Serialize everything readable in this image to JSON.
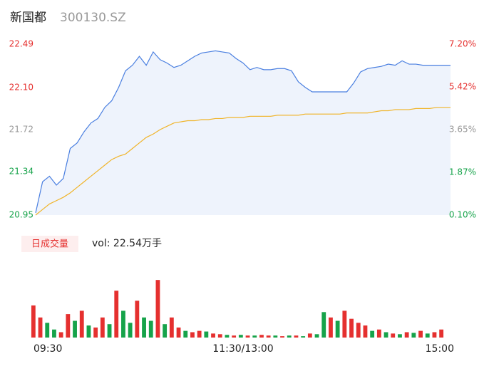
{
  "chart_data": [
    {
      "type": "line",
      "title": "新国都",
      "subtitle": "300130.SZ",
      "xlim": [
        0,
        240
      ],
      "xticks": [
        {
          "value": 0,
          "label": "09:30"
        },
        {
          "value": 120,
          "label": "11:30/13:00"
        },
        {
          "value": 240,
          "label": "15:00"
        }
      ],
      "x": [
        0,
        4,
        8,
        12,
        16,
        20,
        24,
        28,
        32,
        36,
        40,
        44,
        48,
        52,
        56,
        60,
        64,
        68,
        72,
        76,
        80,
        84,
        88,
        92,
        96,
        100,
        104,
        108,
        112,
        116,
        120,
        124,
        128,
        132,
        136,
        140,
        144,
        148,
        152,
        156,
        160,
        164,
        168,
        172,
        176,
        180,
        184,
        188,
        192,
        196,
        200,
        204,
        208,
        212,
        216,
        220,
        224,
        228,
        232,
        236,
        240
      ],
      "ylim": [
        20.95,
        22.49
      ],
      "yticks": [
        20.95,
        21.34,
        21.72,
        {
          "value": 22.1,
          "label": "22.10"
        },
        22.49
      ],
      "y2lim": [
        0.1,
        7.2
      ],
      "y2ticks": [
        {
          "value": 0.1,
          "label": "0.10%"
        },
        {
          "value": 1.87,
          "label": "1.87%"
        },
        {
          "value": 3.65,
          "label": "3.65%"
        },
        {
          "value": 5.42,
          "label": "5.42%"
        },
        {
          "value": 7.2,
          "label": "7.20%"
        }
      ],
      "tick_colors": [
        "#16a34a",
        "#16a34a",
        "#999999",
        "#e5302f",
        "#e5302f"
      ],
      "series": [
        {
          "name": "price",
          "color": "#4a7fe0",
          "fill": "#eef3fc",
          "values": [
            20.97,
            21.25,
            21.3,
            21.22,
            21.28,
            21.55,
            21.6,
            21.7,
            21.78,
            21.82,
            21.92,
            21.98,
            22.1,
            22.25,
            22.3,
            22.38,
            22.3,
            22.42,
            22.35,
            22.32,
            22.28,
            22.3,
            22.34,
            22.38,
            22.41,
            22.42,
            22.43,
            22.42,
            22.41,
            22.36,
            22.32,
            22.26,
            22.28,
            22.26,
            22.26,
            22.27,
            22.27,
            22.25,
            22.15,
            22.1,
            22.06,
            22.06,
            22.06,
            22.06,
            22.06,
            22.06,
            22.14,
            22.24,
            22.27,
            22.28,
            22.29,
            22.31,
            22.3,
            22.34,
            22.31,
            22.31,
            22.3,
            22.3,
            22.3,
            22.3,
            22.3
          ]
        },
        {
          "name": "average",
          "color": "#f0b429",
          "values": [
            20.95,
            21.0,
            21.05,
            21.08,
            21.11,
            21.15,
            21.2,
            21.25,
            21.3,
            21.35,
            21.4,
            21.45,
            21.48,
            21.5,
            21.55,
            21.6,
            21.65,
            21.68,
            21.72,
            21.75,
            21.78,
            21.79,
            21.8,
            21.8,
            21.81,
            21.81,
            21.82,
            21.82,
            21.83,
            21.83,
            21.83,
            21.84,
            21.84,
            21.84,
            21.84,
            21.85,
            21.85,
            21.85,
            21.85,
            21.86,
            21.86,
            21.86,
            21.86,
            21.86,
            21.86,
            21.87,
            21.87,
            21.87,
            21.87,
            21.88,
            21.89,
            21.89,
            21.9,
            21.9,
            21.9,
            21.91,
            21.91,
            21.91,
            21.92,
            21.92,
            21.92
          ]
        }
      ]
    },
    {
      "type": "bar",
      "legend": "日成交量",
      "annotation": "vol: 22.54万手",
      "ylim": [
        0,
        100
      ],
      "values": [
        48,
        30,
        22,
        12,
        8,
        35,
        25,
        40,
        18,
        15,
        30,
        20,
        70,
        40,
        22,
        55,
        30,
        25,
        86,
        20,
        30,
        15,
        10,
        8,
        10,
        9,
        6,
        5,
        4,
        3,
        4,
        3,
        3,
        4,
        3,
        3,
        2,
        3,
        3,
        2,
        6,
        5,
        38,
        30,
        25,
        40,
        28,
        22,
        18,
        10,
        12,
        8,
        6,
        5,
        8,
        7,
        10,
        6,
        8,
        12
      ],
      "colors": [
        "#e5302f",
        "#e5302f",
        "#16a34a",
        "#16a34a",
        "#e5302f",
        "#e5302f",
        "#16a34a",
        "#e5302f",
        "#16a34a",
        "#e5302f",
        "#e5302f",
        "#16a34a",
        "#e5302f",
        "#16a34a",
        "#16a34a",
        "#e5302f",
        "#16a34a",
        "#16a34a",
        "#e5302f",
        "#16a34a",
        "#e5302f",
        "#e5302f",
        "#16a34a",
        "#e5302f",
        "#e5302f",
        "#16a34a",
        "#e5302f",
        "#e5302f",
        "#16a34a",
        "#e5302f",
        "#16a34a",
        "#e5302f",
        "#16a34a",
        "#e5302f",
        "#e5302f",
        "#16a34a",
        "#e5302f",
        "#16a34a",
        "#e5302f",
        "#16a34a",
        "#e5302f",
        "#16a34a",
        "#16a34a",
        "#e5302f",
        "#16a34a",
        "#e5302f",
        "#e5302f",
        "#e5302f",
        "#e5302f",
        "#16a34a",
        "#e5302f",
        "#16a34a",
        "#e5302f",
        "#16a34a",
        "#e5302f",
        "#16a34a",
        "#e5302f",
        "#16a34a",
        "#e5302f",
        "#e5302f"
      ]
    }
  ]
}
